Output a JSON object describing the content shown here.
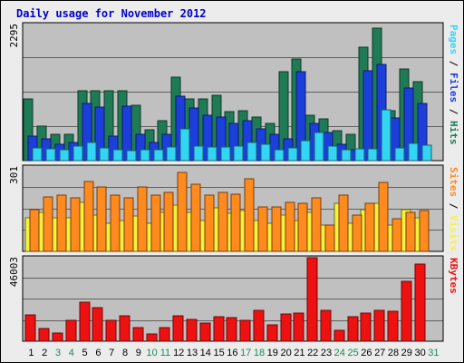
{
  "title": "Daily usage for November 2012",
  "colors": {
    "hits": "#1e7b55",
    "files": "#1c3fdc",
    "pages": "#33d6f2",
    "visits": "#f6f23a",
    "sites": "#ff8a1e",
    "kbytes": "#ee1111",
    "weekday": "#000000",
    "weekend": "#1a8a55",
    "panel_bg": "#c0c0c0",
    "frame_bg": "#ececec"
  },
  "chart_data": [
    {
      "type": "bar",
      "name": "hits-files-pages",
      "ymax_label": "2295",
      "ylim": [
        0,
        2295
      ],
      "right_label": [
        {
          "text": "Pages",
          "color": "#33d6f2"
        },
        {
          "text": " / ",
          "color": "#000000"
        },
        {
          "text": "Files",
          "color": "#1c3fdc"
        },
        {
          "text": " / ",
          "color": "#000000"
        },
        {
          "text": "Hits",
          "color": "#1e7b55"
        }
      ],
      "categories": [
        "1",
        "2",
        "3",
        "4",
        "5",
        "6",
        "7",
        "8",
        "9",
        "10",
        "11",
        "12",
        "13",
        "14",
        "15",
        "16",
        "17",
        "18",
        "19",
        "20",
        "21",
        "22",
        "23",
        "24",
        "25",
        "26",
        "27",
        "28",
        "29",
        "30",
        "31"
      ],
      "series": [
        {
          "name": "Hits",
          "values": [
            1040,
            580,
            440,
            440,
            1180,
            1180,
            1180,
            1180,
            940,
            520,
            680,
            1400,
            1040,
            1040,
            1100,
            820,
            840,
            740,
            620,
            1500,
            1720,
            760,
            700,
            500,
            440,
            1910,
            2230,
            840,
            1550,
            1330,
            0
          ]
        },
        {
          "name": "Files",
          "values": [
            420,
            360,
            280,
            300,
            960,
            900,
            420,
            920,
            440,
            300,
            440,
            1080,
            880,
            770,
            740,
            620,
            670,
            540,
            440,
            370,
            1500,
            620,
            480,
            280,
            180,
            1510,
            1620,
            720,
            1220,
            960,
            0
          ]
        },
        {
          "name": "Pages",
          "values": [
            220,
            200,
            180,
            240,
            310,
            220,
            180,
            170,
            190,
            180,
            230,
            540,
            250,
            230,
            230,
            250,
            300,
            280,
            180,
            210,
            340,
            480,
            240,
            190,
            200,
            200,
            860,
            220,
            290,
            260,
            0
          ]
        }
      ]
    },
    {
      "type": "bar",
      "name": "sites-visits",
      "ymax_label": "301",
      "ylim": [
        0,
        301
      ],
      "right_label": [
        {
          "text": "Sites",
          "color": "#ff8a1e"
        },
        {
          "text": " / ",
          "color": "#000000"
        },
        {
          "text": "Visits",
          "color": "#f6f23a"
        }
      ],
      "categories": [
        "1",
        "2",
        "3",
        "4",
        "5",
        "6",
        "7",
        "8",
        "9",
        "10",
        "11",
        "12",
        "13",
        "14",
        "15",
        "16",
        "17",
        "18",
        "19",
        "20",
        "21",
        "22",
        "23",
        "24",
        "25",
        "26",
        "27",
        "28",
        "29",
        "30",
        "31"
      ],
      "series": [
        {
          "name": "Visits",
          "values": [
            120,
            140,
            120,
            120,
            175,
            130,
            100,
            110,
            125,
            100,
            140,
            165,
            140,
            110,
            155,
            135,
            145,
            110,
            100,
            130,
            110,
            140,
            95,
            170,
            100,
            150,
            170,
            95,
            150,
            120,
            0
          ]
        },
        {
          "name": "Sites",
          "values": [
            150,
            195,
            200,
            190,
            250,
            230,
            200,
            190,
            230,
            200,
            210,
            280,
            240,
            200,
            210,
            205,
            260,
            160,
            160,
            175,
            170,
            190,
            95,
            200,
            130,
            170,
            245,
            115,
            140,
            145,
            0
          ]
        }
      ]
    },
    {
      "type": "bar",
      "name": "kbytes",
      "ymax_label": "46003",
      "ylim": [
        0,
        46003
      ],
      "right_label": [
        {
          "text": "KBytes",
          "color": "#ee1111"
        }
      ],
      "categories": [
        "1",
        "2",
        "3",
        "4",
        "5",
        "6",
        "7",
        "8",
        "9",
        "10",
        "11",
        "12",
        "13",
        "14",
        "15",
        "16",
        "17",
        "18",
        "19",
        "20",
        "21",
        "22",
        "23",
        "24",
        "25",
        "26",
        "27",
        "28",
        "29",
        "30",
        "31"
      ],
      "series": [
        {
          "name": "KBytes",
          "values": [
            14500,
            6800,
            4500,
            11500,
            21500,
            18500,
            11500,
            14200,
            7600,
            4000,
            7400,
            14000,
            12200,
            10200,
            13500,
            13100,
            11500,
            17000,
            9100,
            15200,
            15500,
            46003,
            17200,
            6200,
            13500,
            15400,
            17000,
            16300,
            33200,
            42500,
            0
          ]
        }
      ]
    }
  ]
}
